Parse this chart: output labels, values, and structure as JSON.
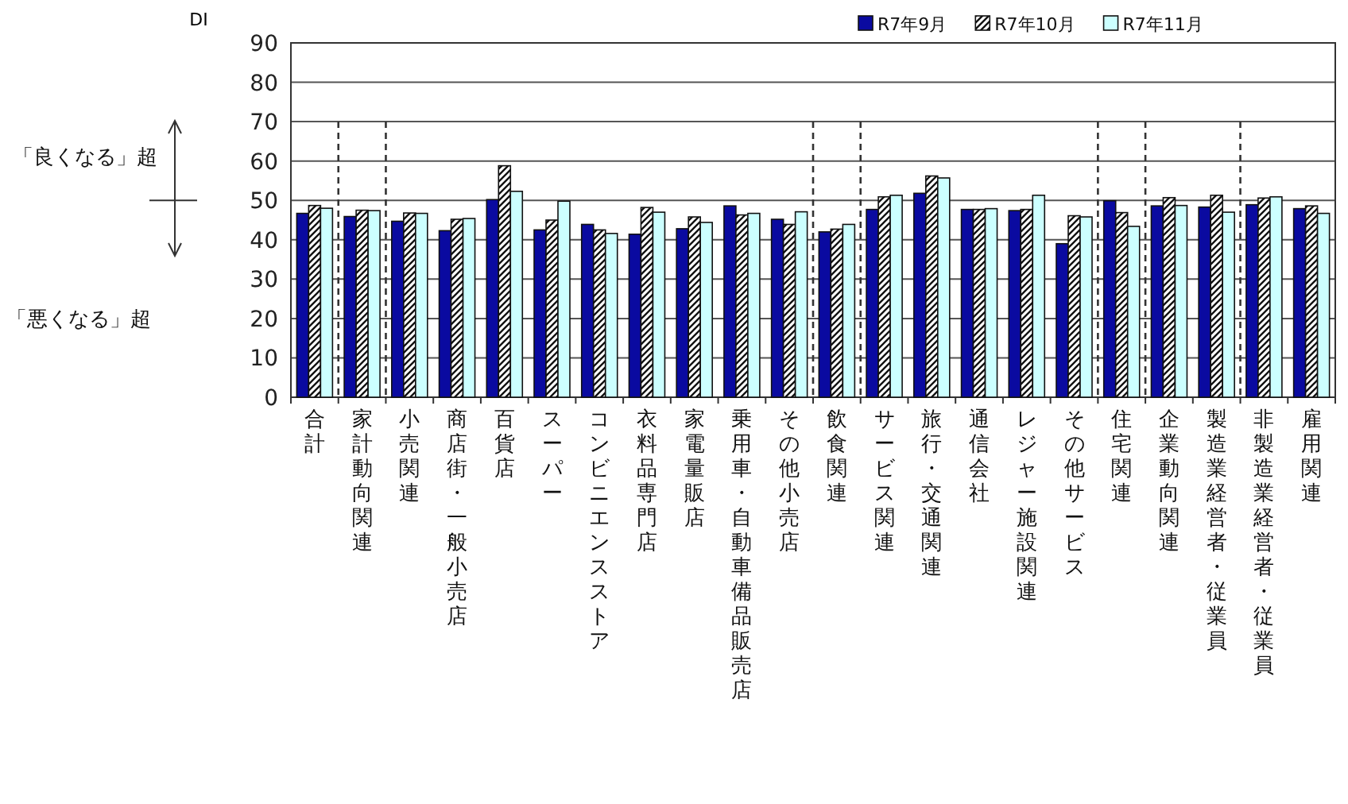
{
  "chart_data": {
    "type": "bar",
    "ylabel": "DI",
    "categories": [
      "合計",
      "家計動向関連",
      "小売関連",
      "商店街・一般小売店",
      "百貨店",
      "スーパー",
      "コンビニエンスストア",
      "衣料品専門店",
      "家電量販店",
      "乗用車・自動車備品販売店",
      "その他小売店",
      "飲食関連",
      "サービス関連",
      "旅行・交通関連",
      "通信会社",
      "レジャー施設関連",
      "その他サービス",
      "住宅関連",
      "企業動向関連",
      "製造業経営者・従業員",
      "非製造業経営者・従業員",
      "雇用関連"
    ],
    "series": [
      {
        "name": "R7年9月",
        "color": "#0a0aa0",
        "values": [
          46.7,
          45.9,
          44.7,
          42.3,
          50.2,
          42.5,
          43.9,
          41.4,
          42.8,
          48.6,
          45.2,
          42.0,
          47.7,
          51.8,
          47.7,
          47.4,
          39.0,
          49.9,
          48.6,
          48.3,
          48.9,
          47.9
        ]
      },
      {
        "name": "R7年10月",
        "color": "#111111",
        "values": [
          48.7,
          47.5,
          46.8,
          45.2,
          58.8,
          45.0,
          42.5,
          48.2,
          45.8,
          46.3,
          43.9,
          42.7,
          50.9,
          56.2,
          47.7,
          47.7,
          46.1,
          46.9,
          50.7,
          51.3,
          50.6,
          48.6
        ]
      },
      {
        "name": "R7年11月",
        "color": "#ccffff",
        "values": [
          48.0,
          47.4,
          46.7,
          45.4,
          52.3,
          49.8,
          41.6,
          47.0,
          44.4,
          46.7,
          47.1,
          43.9,
          51.3,
          55.7,
          47.9,
          51.3,
          45.8,
          43.4,
          48.7,
          47.0,
          50.9,
          46.7
        ]
      }
    ],
    "ylim": [
      0,
      90
    ],
    "yticks": [
      0,
      10,
      20,
      30,
      40,
      50,
      60,
      70,
      80,
      90
    ],
    "grid": "y",
    "legend": "top right",
    "annotations": [
      "「良くなる」超",
      "「悪くなる」超"
    ]
  }
}
